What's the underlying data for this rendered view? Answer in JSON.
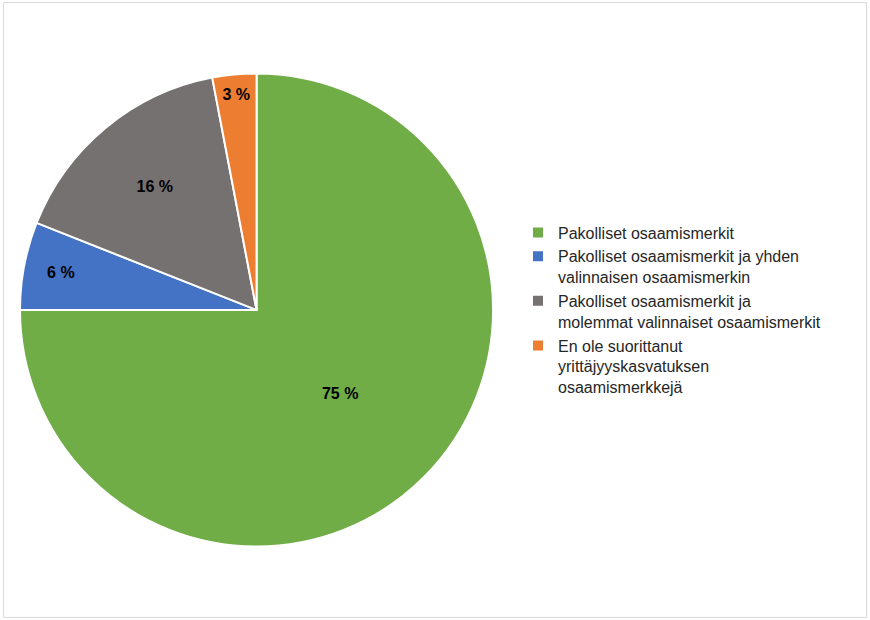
{
  "chart_data": {
    "type": "pie",
    "categories": [
      "Pakolliset osaamismerkit",
      "Pakolliset osaamismerkit ja yhden valinnaisen osaamismerkin",
      "Pakolliset osaamismerkit ja molemmat valinnaiset osaamismerkit",
      "En ole suorittanut yrittäjyyskasvatuksen osaamismerkkejä"
    ],
    "values": [
      75,
      6,
      16,
      3
    ],
    "value_labels": [
      "75 %",
      "6 %",
      "16 %",
      "3 %"
    ],
    "colors": [
      "#70ad47",
      "#4472c4",
      "#767171",
      "#ed7d31"
    ],
    "data_labels": true,
    "legend": "right"
  }
}
